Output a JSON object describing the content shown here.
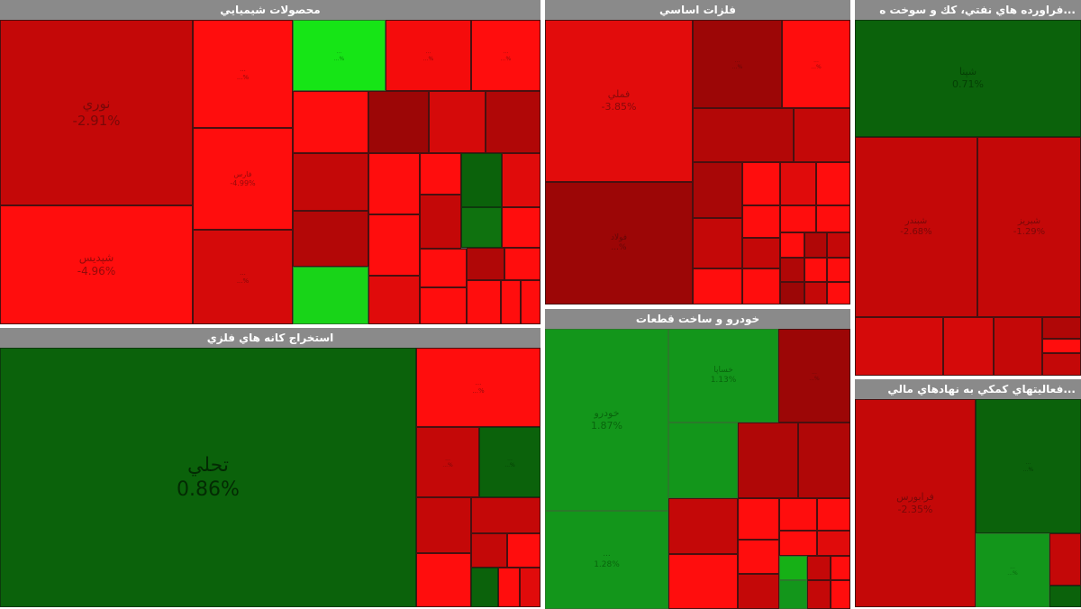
{
  "colors": {
    "red_bright": "#ff0d0d",
    "red_mid": "#e20c0c",
    "red_dark": "#c40808",
    "red_deep": "#9c0606",
    "green_dark": "#0b620b",
    "green_mid": "#13961b",
    "green_light": "#16e516",
    "header": "#8a8a8a"
  },
  "panels": {
    "chem": {
      "title": "محصولات شيميايي",
      "tiles": [
        {
          "name": "نوري",
          "pct": "-2.91%",
          "c": "red_dark"
        },
        {
          "name": "شپديس",
          "pct": "-4.96%",
          "c": "red_bright"
        },
        {
          "name": "...",
          "pct": "...%",
          "c": "red_bright"
        },
        {
          "name": "فارس",
          "pct": "-4.99%",
          "c": "red_bright"
        },
        {
          "name": "...",
          "pct": "...%",
          "c": "red_dark"
        },
        {
          "name": "...",
          "pct": "...%",
          "c": "green_light"
        },
        {
          "name": "...",
          "pct": "...%",
          "c": "red_bright"
        },
        {
          "name": "...",
          "pct": "...%",
          "c": "red_bright"
        }
      ]
    },
    "metals": {
      "title": "فلزات اساسي",
      "tiles": [
        {
          "name": "فملي",
          "pct": "-3.85%",
          "c": "red_mid"
        },
        {
          "name": "فولاد",
          "pct": "...%",
          "c": "red_deep"
        },
        {
          "name": "...",
          "pct": "...%",
          "c": "red_deep"
        },
        {
          "name": "...",
          "pct": "...%",
          "c": "red_bright"
        }
      ]
    },
    "refinery": {
      "title": "...فراورده هاي نفتي، كك و سوخت ه",
      "tiles": [
        {
          "name": "شپنا",
          "pct": "0.71%",
          "c": "green_dark"
        },
        {
          "name": "شبندر",
          "pct": "-2.68%",
          "c": "red_dark"
        },
        {
          "name": "شبريز",
          "pct": "-1.29%",
          "c": "red_dark"
        }
      ]
    },
    "mining": {
      "title": "استخراج كانه هاي فلزي",
      "tiles": [
        {
          "name": "تحلي",
          "pct": "0.86%",
          "c": "green_dark"
        },
        {
          "name": "...",
          "pct": "...%",
          "c": "red_bright"
        },
        {
          "name": "...",
          "pct": "...%",
          "c": "red_dark"
        },
        {
          "name": "...",
          "pct": "...%",
          "c": "green_dark"
        }
      ]
    },
    "auto": {
      "title": "خودرو و ساخت قطعات",
      "tiles": [
        {
          "name": "خودرو",
          "pct": "1.87%",
          "c": "green_mid"
        },
        {
          "name": "...",
          "pct": "1.28%",
          "c": "green_mid"
        },
        {
          "name": "خساپا",
          "pct": "1.13%",
          "c": "green_mid"
        },
        {
          "name": "...",
          "pct": "...%",
          "c": "red_deep"
        }
      ]
    },
    "finance": {
      "title": "...فعاليتهاي كمكي به نهادهاي مالي",
      "tiles": [
        {
          "name": "فرابورس",
          "pct": "-2.35%",
          "c": "red_dark"
        },
        {
          "name": "...",
          "pct": "...%",
          "c": "green_dark"
        },
        {
          "name": "...",
          "pct": "...%",
          "c": "green_mid"
        }
      ]
    }
  }
}
